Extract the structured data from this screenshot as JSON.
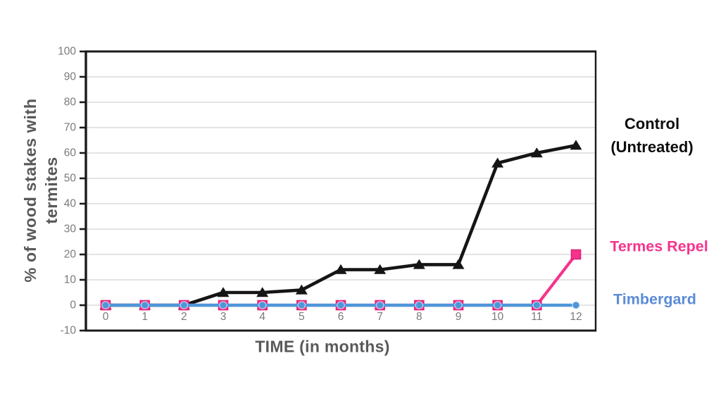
{
  "chart_data": {
    "type": "line",
    "title": "",
    "xlabel": "TIME (in months)",
    "ylabel": "% of wood stakes with termites",
    "ylabel_lines": [
      "% of wood stakes with",
      "termites"
    ],
    "x": [
      0,
      1,
      2,
      3,
      4,
      5,
      6,
      7,
      8,
      9,
      10,
      11,
      12
    ],
    "xticks": [
      "0",
      "1",
      "2",
      "3",
      "4",
      "5",
      "6",
      "7",
      "8",
      "9",
      "10",
      "11",
      "12"
    ],
    "ylim": [
      -10,
      100
    ],
    "yticks": [
      100,
      90,
      80,
      70,
      60,
      50,
      40,
      30,
      20,
      10,
      0,
      -10
    ],
    "grid": true,
    "legend_position": "right",
    "series": [
      {
        "id": "control",
        "name": "Control (Untreated)",
        "color": "#151515",
        "marker": "triangle",
        "line_width": 4.6,
        "values": [
          0,
          0,
          0,
          5,
          5,
          6,
          14,
          14,
          16,
          16,
          56,
          60,
          63
        ]
      },
      {
        "id": "termes-repel",
        "name": "Termes Repel",
        "color": "#F5348C",
        "marker": "square",
        "marker_stroke": "#E02178",
        "line_width": 4.2,
        "values": [
          0,
          0,
          0,
          0,
          0,
          0,
          0,
          0,
          0,
          0,
          0,
          0,
          20
        ]
      },
      {
        "id": "timbergard",
        "name": "Timbergard",
        "color": "#4E96D9",
        "marker": "circle",
        "line_width": 4.6,
        "values": [
          0,
          0,
          0,
          0,
          0,
          0,
          0,
          0,
          0,
          0,
          0,
          0,
          0
        ]
      }
    ],
    "colors": {
      "background": "#FFFFFF",
      "grid": "#DBDBDB",
      "axis": "#1A1A1A",
      "tick_label": "#7A7A7A",
      "axis_title": "#595959"
    }
  },
  "legend": {
    "entries": [
      {
        "id": "control",
        "lines": [
          "Control",
          "(Untreated)"
        ],
        "color": "#0D0D0D"
      },
      {
        "id": "termes-repel",
        "lines": [
          "Termes Repel"
        ],
        "color": "#F5348C"
      },
      {
        "id": "timbergard",
        "lines": [
          "Timbergard"
        ],
        "color": "#5B8CD6"
      }
    ]
  }
}
